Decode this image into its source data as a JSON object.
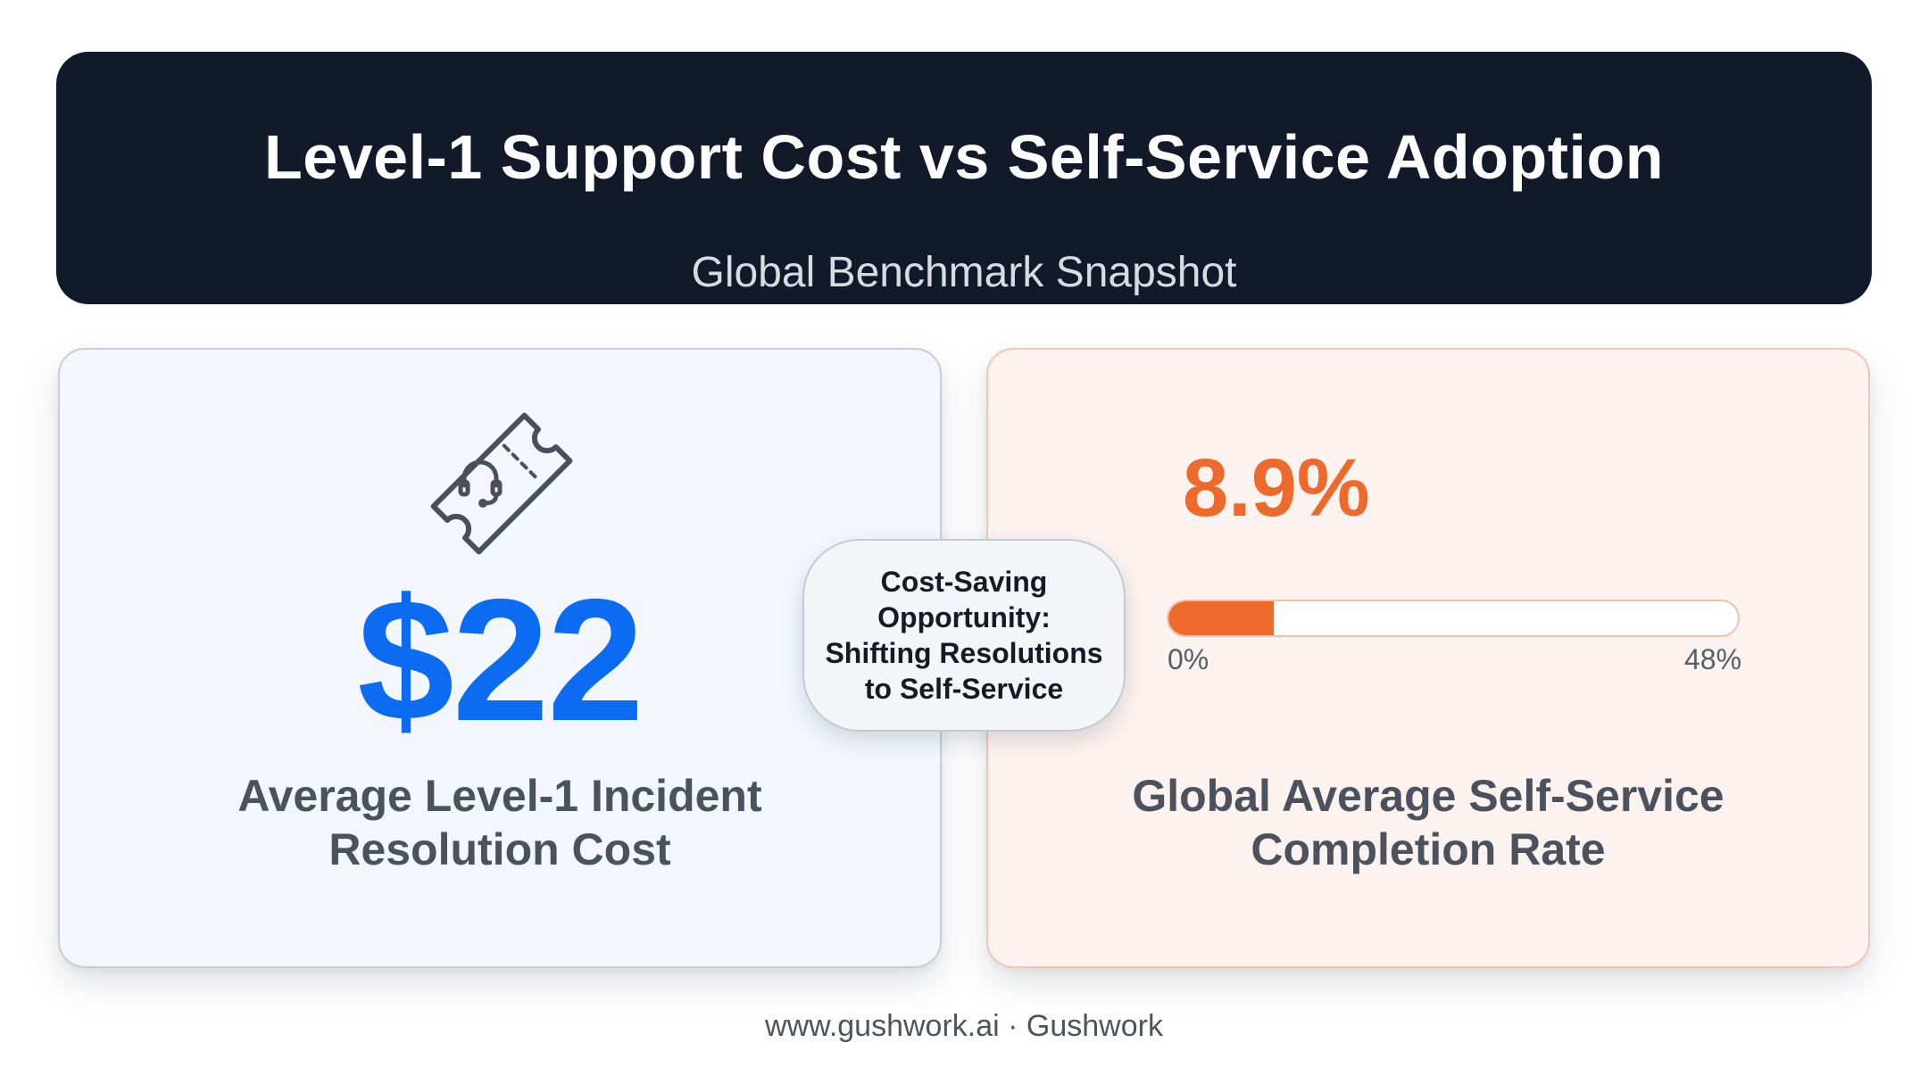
{
  "header": {
    "title": "Level-1 Support Cost vs Self-Service Adoption",
    "subtitle": "Global Benchmark Snapshot"
  },
  "cost_card": {
    "icon": "support-ticket-headset-icon",
    "value": "$22",
    "label_line1": "Average Level-1 Incident",
    "label_line2": "Resolution Cost",
    "value_color": "#0b6cf2"
  },
  "adoption_card": {
    "value": "8.9%",
    "progress": {
      "value": 8.9,
      "min": 0,
      "max": 48,
      "min_label": "0%",
      "max_label": "48%"
    },
    "label_line1": "Global Average Self-Service",
    "label_line2": "Completion Rate",
    "accent_color": "#ee6a2c"
  },
  "center_badge": {
    "line1": "Cost-Saving",
    "line2": "Opportunity:",
    "line3": "Shifting Resolutions",
    "line4": "to Self-Service"
  },
  "footer": {
    "text": "www.gushwork.ai · Gushwork"
  },
  "colors": {
    "header_background": "#121a2a",
    "left_card_background": "#f3f6fc",
    "right_card_background": "#fcf2ef"
  }
}
